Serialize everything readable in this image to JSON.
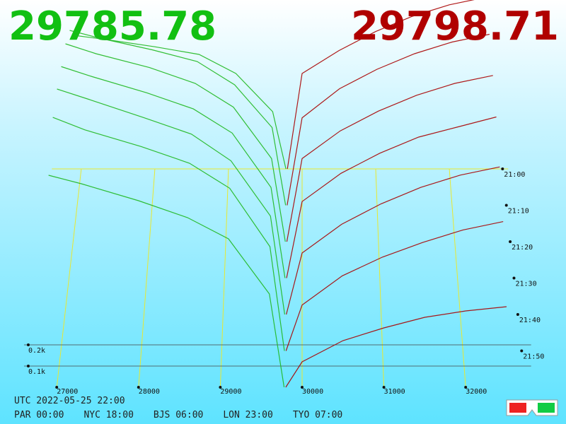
{
  "prices": {
    "bid": 29785.78,
    "ask": 29798.71
  },
  "clock": {
    "utc": "UTC 2022-05-25 22:00",
    "zones": [
      "PAR 00:00",
      "NYC 18:00",
      "BJS 06:00",
      "LON 23:00",
      "TYO 07:00"
    ]
  },
  "chart_data": {
    "type": "depth3d",
    "bid_color": "#1fb81f",
    "ask_color": "#a80000",
    "xlim": [
      26600,
      32800
    ],
    "xticks": [
      27000,
      28000,
      29000,
      30000,
      31000,
      32000
    ],
    "depth_ticks": [
      {
        "value": 0.1,
        "label": "0.1k"
      },
      {
        "value": 0.2,
        "label": "0.2k"
      }
    ],
    "zlim": [
      0,
      60
    ],
    "zticks": [
      {
        "value": 0,
        "label": "21:00"
      },
      {
        "value": 10,
        "label": "21:10"
      },
      {
        "value": 20,
        "label": "21:20"
      },
      {
        "value": 30,
        "label": "21:30"
      },
      {
        "value": 40,
        "label": "21:40"
      },
      {
        "value": 50,
        "label": "21:50"
      }
    ],
    "bid_prices": [
      26900,
      27300,
      28000,
      28600,
      29100,
      29600,
      29780
    ],
    "ask_prices": [
      29800,
      30000,
      30500,
      31000,
      31500,
      32000,
      32500
    ],
    "snapshots": [
      {
        "z": 0,
        "bids": [
          0.7,
          0.68,
          0.64,
          0.6,
          0.5,
          0.3,
          0.0
        ],
        "asks": [
          0.0,
          0.5,
          0.62,
          0.72,
          0.8,
          0.86,
          0.9
        ]
      },
      {
        "z": 10,
        "bids": [
          0.9,
          0.86,
          0.8,
          0.74,
          0.62,
          0.4,
          0.0
        ],
        "asks": [
          0.0,
          0.45,
          0.6,
          0.7,
          0.78,
          0.84,
          0.88
        ]
      },
      {
        "z": 20,
        "bids": [
          1.0,
          0.95,
          0.88,
          0.8,
          0.68,
          0.42,
          0.0
        ],
        "asks": [
          0.0,
          0.42,
          0.56,
          0.66,
          0.74,
          0.8,
          0.84
        ]
      },
      {
        "z": 30,
        "bids": [
          1.05,
          1.0,
          0.92,
          0.84,
          0.72,
          0.45,
          0.0
        ],
        "asks": [
          0.0,
          0.38,
          0.52,
          0.62,
          0.7,
          0.75,
          0.8
        ]
      },
      {
        "z": 40,
        "bids": [
          1.1,
          1.05,
          0.96,
          0.88,
          0.75,
          0.48,
          0.0
        ],
        "asks": [
          0.0,
          0.3,
          0.44,
          0.54,
          0.62,
          0.68,
          0.72
        ]
      },
      {
        "z": 50,
        "bids": [
          1.12,
          1.06,
          0.98,
          0.9,
          0.78,
          0.5,
          0.0
        ],
        "asks": [
          0.0,
          0.22,
          0.36,
          0.45,
          0.52,
          0.58,
          0.62
        ]
      },
      {
        "z": 60,
        "bids": [
          1.0,
          0.96,
          0.88,
          0.8,
          0.7,
          0.44,
          0.0
        ],
        "asks": [
          0.0,
          0.12,
          0.22,
          0.28,
          0.33,
          0.36,
          0.38
        ]
      }
    ]
  }
}
